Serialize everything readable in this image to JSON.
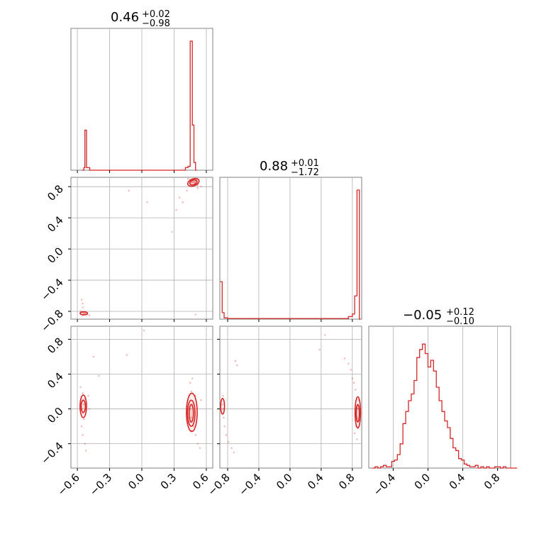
{
  "figure": {
    "titles": [
      {
        "value": "0.46",
        "plus": "+0.02",
        "minus": "−0.98"
      },
      {
        "value": "0.88",
        "plus": "+0.01",
        "minus": "−1.72"
      },
      {
        "value": "−0.05",
        "plus": "+0.12",
        "minus": "−0.10"
      }
    ],
    "colors": {
      "series": "#d62728",
      "grid": "#b0b0b0",
      "frame": "#808080",
      "background": "#ffffff"
    }
  },
  "chart_data": [
    {
      "type": "histogram",
      "panel": "p1-marginal",
      "x_range": [
        -0.66,
        0.66
      ],
      "x_ticks": [
        -0.6,
        -0.3,
        0.0,
        0.3,
        0.6
      ],
      "bins": [
        {
          "x0": -0.555,
          "x1": -0.54,
          "h": 0
        },
        {
          "x0": -0.54,
          "x1": -0.53,
          "h": 0.02
        },
        {
          "x0": -0.53,
          "x1": -0.515,
          "h": 0.31
        },
        {
          "x0": -0.515,
          "x1": -0.485,
          "h": 0.02
        },
        {
          "x0": -0.485,
          "x1": 0.405,
          "h": 0.0
        },
        {
          "x0": 0.405,
          "x1": 0.43,
          "h": 0.02
        },
        {
          "x0": 0.43,
          "x1": 0.45,
          "h": 0.03
        },
        {
          "x0": 0.45,
          "x1": 0.47,
          "h": 1.0
        },
        {
          "x0": 0.47,
          "x1": 0.485,
          "h": 0.35
        },
        {
          "x0": 0.485,
          "x1": 0.5,
          "h": 0.06
        },
        {
          "x0": 0.5,
          "x1": 0.51,
          "h": 0.0
        }
      ],
      "grid": true
    },
    {
      "type": "scatter",
      "panel": "p2-vs-p1",
      "x_range": [
        -0.66,
        0.66
      ],
      "y_range": [
        -0.9,
        0.92
      ],
      "y_ticks": [
        -0.8,
        -0.4,
        0.0,
        0.4,
        0.8
      ],
      "points": [
        [
          0.47,
          0.87
        ],
        [
          0.48,
          0.86
        ],
        [
          0.5,
          0.85
        ],
        [
          0.46,
          0.88
        ],
        [
          0.49,
          0.84
        ],
        [
          0.45,
          0.89
        ],
        [
          0.51,
          0.83
        ],
        [
          0.47,
          0.85
        ],
        [
          0.44,
          0.87
        ],
        [
          0.5,
          0.87
        ],
        [
          0.52,
          0.82
        ],
        [
          0.48,
          0.88
        ],
        [
          0.43,
          0.9
        ],
        [
          0.46,
          0.86
        ],
        [
          0.49,
          0.86
        ],
        [
          0.42,
          0.75
        ],
        [
          0.35,
          0.66
        ],
        [
          0.38,
          0.6
        ],
        [
          0.32,
          0.5
        ],
        [
          0.28,
          0.22
        ],
        [
          0.52,
          0.78
        ],
        [
          0.55,
          0.8
        ],
        [
          -0.12,
          0.75
        ],
        [
          0.05,
          0.6
        ],
        [
          -0.55,
          -0.82
        ],
        [
          -0.54,
          -0.83
        ],
        [
          -0.53,
          -0.84
        ],
        [
          -0.56,
          -0.81
        ],
        [
          -0.52,
          -0.83
        ],
        [
          -0.55,
          -0.85
        ],
        [
          -0.51,
          -0.84
        ],
        [
          -0.54,
          -0.81
        ],
        [
          -0.57,
          -0.8
        ],
        [
          -0.53,
          -0.82
        ],
        [
          -0.55,
          -0.7
        ],
        [
          -0.56,
          -0.65
        ],
        [
          -0.55,
          -0.75
        ],
        [
          -0.49,
          -0.85
        ],
        [
          0.5,
          -0.84
        ]
      ],
      "contours": [
        {
          "cx": 0.48,
          "cy": 0.855,
          "rx": 0.035,
          "ry": 0.03,
          "rot": 20
        },
        {
          "cx": 0.48,
          "cy": 0.855,
          "rx": 0.055,
          "ry": 0.045,
          "rot": 20
        },
        {
          "cx": -0.54,
          "cy": -0.825,
          "rx": 0.035,
          "ry": 0.02,
          "rot": 0
        }
      ],
      "grid": true
    },
    {
      "type": "histogram",
      "panel": "p2-marginal",
      "x_range": [
        -0.9,
        0.92
      ],
      "bins": [
        {
          "x0": -0.895,
          "x1": -0.87,
          "h": 0.29
        },
        {
          "x0": -0.87,
          "x1": -0.845,
          "h": 0.05
        },
        {
          "x0": -0.845,
          "x1": -0.8,
          "h": 0.01
        },
        {
          "x0": -0.8,
          "x1": 0.75,
          "h": 0.005
        },
        {
          "x0": 0.75,
          "x1": 0.8,
          "h": 0.02
        },
        {
          "x0": 0.8,
          "x1": 0.83,
          "h": 0.04
        },
        {
          "x0": 0.83,
          "x1": 0.86,
          "h": 0.18
        },
        {
          "x0": 0.86,
          "x1": 0.89,
          "h": 1.0
        },
        {
          "x0": 0.89,
          "x1": 0.905,
          "h": 0.0
        }
      ],
      "grid": true
    },
    {
      "type": "scatter",
      "panel": "p3-vs-p1",
      "x_range": [
        -0.66,
        0.66
      ],
      "y_range": [
        -0.68,
        0.95
      ],
      "y_ticks": [
        -0.4,
        0.0,
        0.4,
        0.8
      ],
      "points": [
        [
          -0.55,
          0.1
        ],
        [
          -0.54,
          0.05
        ],
        [
          -0.55,
          -0.05
        ],
        [
          -0.56,
          0.0
        ],
        [
          -0.53,
          0.12
        ],
        [
          -0.55,
          0.18
        ],
        [
          -0.54,
          -0.12
        ],
        [
          -0.56,
          -0.2
        ],
        [
          -0.55,
          -0.3
        ],
        [
          -0.53,
          -0.4
        ],
        [
          -0.52,
          -0.48
        ],
        [
          -0.57,
          0.25
        ],
        [
          -0.5,
          0.15
        ],
        [
          -0.49,
          0.0
        ],
        [
          -0.45,
          0.6
        ],
        [
          -0.4,
          0.38
        ],
        [
          -0.14,
          0.62
        ],
        [
          0.45,
          0.0
        ],
        [
          0.46,
          -0.1
        ],
        [
          0.47,
          0.05
        ],
        [
          0.44,
          -0.15
        ],
        [
          0.46,
          0.2
        ],
        [
          0.45,
          0.3
        ],
        [
          0.47,
          0.35
        ],
        [
          0.48,
          -0.2
        ],
        [
          0.46,
          -0.25
        ],
        [
          0.5,
          -0.3
        ],
        [
          0.52,
          -0.4
        ],
        [
          0.54,
          -0.45
        ],
        [
          0.43,
          0.1
        ],
        [
          0.42,
          -0.05
        ],
        [
          0.55,
          0.1
        ],
        [
          0.5,
          0.15
        ],
        [
          0.02,
          0.9
        ]
      ],
      "contours": [
        {
          "cx": -0.545,
          "cy": 0.03,
          "rx": 0.02,
          "ry": 0.07,
          "rot": 0
        },
        {
          "cx": -0.545,
          "cy": 0.03,
          "rx": 0.03,
          "ry": 0.13,
          "rot": 0
        },
        {
          "cx": 0.46,
          "cy": -0.05,
          "rx": 0.02,
          "ry": 0.1,
          "rot": 0
        },
        {
          "cx": 0.46,
          "cy": -0.05,
          "rx": 0.035,
          "ry": 0.15,
          "rot": 0
        },
        {
          "cx": 0.465,
          "cy": -0.04,
          "rx": 0.05,
          "ry": 0.22,
          "rot": 0
        }
      ],
      "grid": true
    },
    {
      "type": "scatter",
      "panel": "p3-vs-p2",
      "x_range": [
        -0.9,
        0.92
      ],
      "y_range": [
        -0.68,
        0.95
      ],
      "points": [
        [
          -0.87,
          0.05
        ],
        [
          -0.86,
          0.0
        ],
        [
          -0.88,
          0.1
        ],
        [
          -0.85,
          -0.1
        ],
        [
          -0.86,
          0.15
        ],
        [
          -0.84,
          -0.2
        ],
        [
          -0.82,
          -0.3
        ],
        [
          -0.79,
          -0.38
        ],
        [
          -0.75,
          -0.45
        ],
        [
          -0.72,
          -0.5
        ],
        [
          -0.68,
          0.5
        ],
        [
          -0.7,
          0.55
        ],
        [
          0.87,
          0.0
        ],
        [
          0.86,
          -0.1
        ],
        [
          0.88,
          0.1
        ],
        [
          0.85,
          -0.2
        ],
        [
          0.84,
          0.22
        ],
        [
          0.82,
          0.3
        ],
        [
          0.8,
          0.35
        ],
        [
          0.78,
          0.45
        ],
        [
          0.75,
          0.52
        ],
        [
          0.7,
          0.58
        ],
        [
          0.83,
          -0.28
        ],
        [
          0.86,
          -0.35
        ],
        [
          0.38,
          0.68
        ],
        [
          0.45,
          0.85
        ]
      ],
      "contours": [
        {
          "cx": -0.865,
          "cy": 0.03,
          "rx": 0.025,
          "ry": 0.09,
          "rot": 0
        },
        {
          "cx": 0.87,
          "cy": -0.05,
          "rx": 0.02,
          "ry": 0.1,
          "rot": 0
        },
        {
          "cx": 0.87,
          "cy": -0.04,
          "rx": 0.035,
          "ry": 0.18,
          "rot": 0
        }
      ],
      "grid": true
    },
    {
      "type": "histogram",
      "panel": "p3-marginal",
      "x_range": [
        -0.68,
        0.95
      ],
      "x_ticks": [
        -0.4,
        0.0,
        0.4,
        0.8
      ],
      "step_heights": [
        0.0,
        0.01,
        0.0,
        0.01,
        0.02,
        0.01,
        0.01,
        0.05,
        0.06,
        0.1,
        0.18,
        0.33,
        0.42,
        0.5,
        0.55,
        0.65,
        0.82,
        0.88,
        0.92,
        0.85,
        0.75,
        0.8,
        0.72,
        0.6,
        0.5,
        0.42,
        0.35,
        0.3,
        0.22,
        0.15,
        0.13,
        0.07,
        0.06,
        0.03,
        0.02,
        0.01,
        0.01,
        0.02,
        0.0,
        0.01,
        0.0,
        0.01,
        0.0,
        0.0,
        0.01,
        0.01,
        0.0,
        0.01,
        0.0,
        0.0,
        0.0,
        0.0
      ],
      "step_x0": -0.64,
      "step_dx": 0.032,
      "grid": true
    }
  ]
}
